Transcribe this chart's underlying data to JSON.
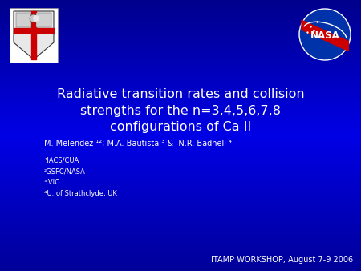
{
  "bg_color_top": "#000080",
  "bg_color_mid": "#0000DD",
  "bg_color_bottom": "#0000AA",
  "title_line1": "Radiative transition rates and collision",
  "title_line2": "strengths for the n=3,4,5,6,7,8",
  "title_line3": "configurations of Ca II",
  "authors": "M. Melendez ¹²; M.A. Bautista ³ &  N.R. Badnell ⁴",
  "affiliations": [
    "¹IACS/CUA",
    "²GSFC/NASA",
    "³IVIC",
    "⁴U. of Strathclyde, UK"
  ],
  "footer": "ITAMP WORKSHOP, August 7-9 2006",
  "text_color": "#FFFFFF",
  "title_fontsize": 11.5,
  "author_fontsize": 7,
  "affil_fontsize": 6,
  "footer_fontsize": 7
}
